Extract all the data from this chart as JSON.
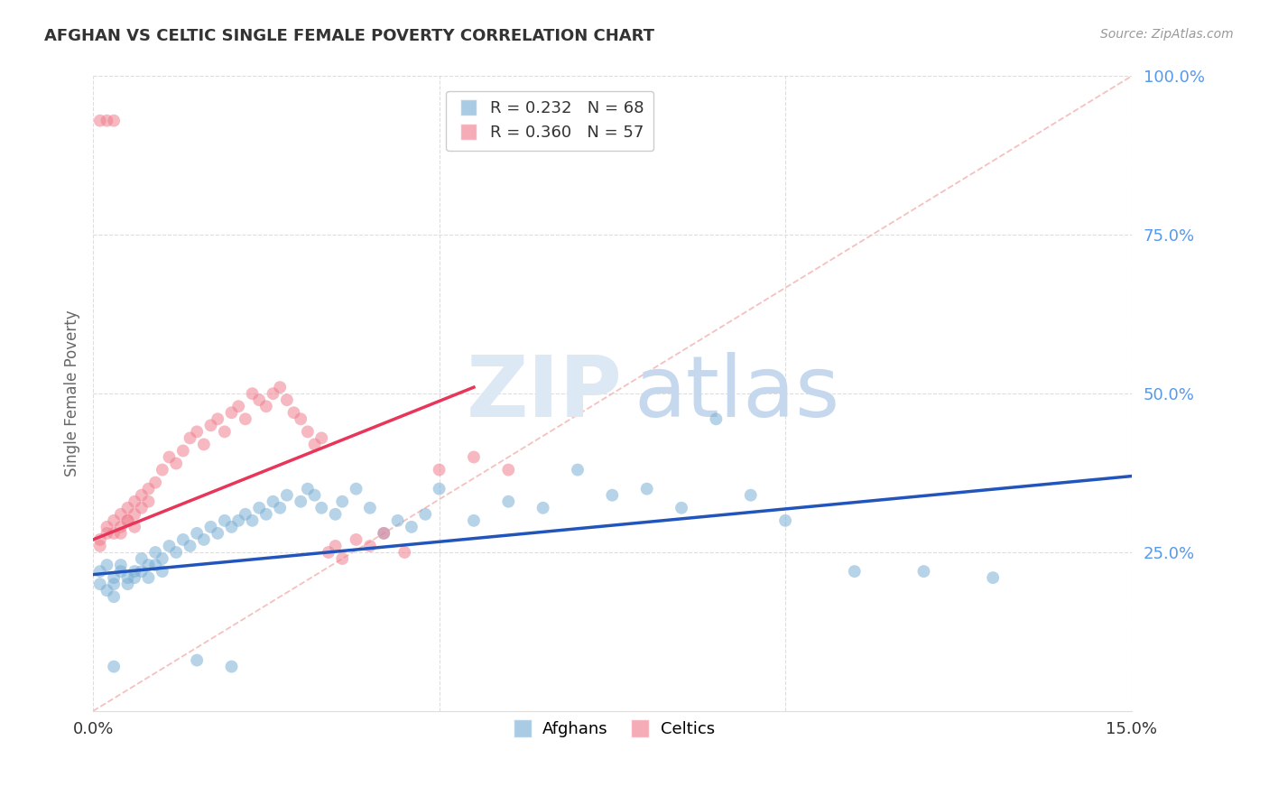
{
  "title": "AFGHAN VS CELTIC SINGLE FEMALE POVERTY CORRELATION CHART",
  "source": "Source: ZipAtlas.com",
  "ylabel": "Single Female Poverty",
  "xlim": [
    0.0,
    0.15
  ],
  "ylim": [
    0.0,
    1.0
  ],
  "xtick_vals": [
    0.0,
    0.05,
    0.1,
    0.15
  ],
  "xtick_labels": [
    "0.0%",
    "",
    "",
    "15.0%"
  ],
  "ytick_vals": [
    0.25,
    0.5,
    0.75,
    1.0
  ],
  "ytick_labels": [
    "25.0%",
    "50.0%",
    "75.0%",
    "100.0%"
  ],
  "afghan_color": "#7BAFD4",
  "celtic_color": "#F08090",
  "afghan_line_color": "#2255BB",
  "celtic_line_color": "#E8365A",
  "diagonal_color": "#F5C0C0",
  "background_color": "#FFFFFF",
  "grid_color": "#DDDDDD",
  "watermark_zip_color": "#DDE8F5",
  "watermark_atlas_color": "#C5D8EE",
  "title_color": "#333333",
  "source_color": "#999999",
  "ylabel_color": "#666666",
  "ytick_color": "#5599EE",
  "xtick_color": "#333333",
  "afghan_r": "0.232",
  "afghan_n": "68",
  "celtic_r": "0.360",
  "celtic_n": "57",
  "legend_r_color": "#44AAEE",
  "legend_n_color": "#EE6644",
  "afghan_points_x": [
    0.001,
    0.001,
    0.002,
    0.002,
    0.003,
    0.003,
    0.003,
    0.004,
    0.004,
    0.005,
    0.005,
    0.006,
    0.006,
    0.007,
    0.007,
    0.008,
    0.008,
    0.009,
    0.009,
    0.01,
    0.01,
    0.011,
    0.012,
    0.013,
    0.014,
    0.015,
    0.016,
    0.017,
    0.018,
    0.019,
    0.02,
    0.021,
    0.022,
    0.023,
    0.024,
    0.025,
    0.026,
    0.027,
    0.028,
    0.03,
    0.031,
    0.032,
    0.033,
    0.035,
    0.036,
    0.038,
    0.04,
    0.042,
    0.044,
    0.046,
    0.048,
    0.05,
    0.055,
    0.06,
    0.065,
    0.07,
    0.075,
    0.08,
    0.085,
    0.09,
    0.095,
    0.1,
    0.11,
    0.12,
    0.13,
    0.003,
    0.015,
    0.02
  ],
  "afghan_points_y": [
    0.22,
    0.2,
    0.23,
    0.19,
    0.21,
    0.2,
    0.18,
    0.23,
    0.22,
    0.21,
    0.2,
    0.22,
    0.21,
    0.24,
    0.22,
    0.23,
    0.21,
    0.25,
    0.23,
    0.24,
    0.22,
    0.26,
    0.25,
    0.27,
    0.26,
    0.28,
    0.27,
    0.29,
    0.28,
    0.3,
    0.29,
    0.3,
    0.31,
    0.3,
    0.32,
    0.31,
    0.33,
    0.32,
    0.34,
    0.33,
    0.35,
    0.34,
    0.32,
    0.31,
    0.33,
    0.35,
    0.32,
    0.28,
    0.3,
    0.29,
    0.31,
    0.35,
    0.3,
    0.33,
    0.32,
    0.38,
    0.34,
    0.35,
    0.32,
    0.46,
    0.34,
    0.3,
    0.22,
    0.22,
    0.21,
    0.07,
    0.08,
    0.07
  ],
  "celtic_points_x": [
    0.001,
    0.001,
    0.002,
    0.002,
    0.003,
    0.003,
    0.004,
    0.004,
    0.005,
    0.005,
    0.006,
    0.006,
    0.007,
    0.007,
    0.008,
    0.008,
    0.009,
    0.01,
    0.011,
    0.012,
    0.013,
    0.014,
    0.015,
    0.016,
    0.017,
    0.018,
    0.019,
    0.02,
    0.021,
    0.022,
    0.023,
    0.024,
    0.025,
    0.026,
    0.027,
    0.028,
    0.029,
    0.03,
    0.031,
    0.032,
    0.033,
    0.034,
    0.035,
    0.036,
    0.038,
    0.04,
    0.042,
    0.045,
    0.05,
    0.055,
    0.06,
    0.001,
    0.002,
    0.003,
    0.004,
    0.005,
    0.006
  ],
  "celtic_points_y": [
    0.27,
    0.26,
    0.29,
    0.28,
    0.3,
    0.28,
    0.31,
    0.29,
    0.32,
    0.3,
    0.33,
    0.31,
    0.34,
    0.32,
    0.35,
    0.33,
    0.36,
    0.38,
    0.4,
    0.39,
    0.41,
    0.43,
    0.44,
    0.42,
    0.45,
    0.46,
    0.44,
    0.47,
    0.48,
    0.46,
    0.5,
    0.49,
    0.48,
    0.5,
    0.51,
    0.49,
    0.47,
    0.46,
    0.44,
    0.42,
    0.43,
    0.25,
    0.26,
    0.24,
    0.27,
    0.26,
    0.28,
    0.25,
    0.38,
    0.4,
    0.38,
    0.93,
    0.93,
    0.93,
    0.28,
    0.3,
    0.29
  ],
  "afghan_line_x": [
    0.0,
    0.15
  ],
  "afghan_line_y": [
    0.215,
    0.37
  ],
  "celtic_line_x": [
    0.0,
    0.055
  ],
  "celtic_line_y": [
    0.27,
    0.51
  ],
  "diag_line_x": [
    0.0,
    0.15
  ],
  "diag_line_y": [
    0.0,
    1.0
  ]
}
